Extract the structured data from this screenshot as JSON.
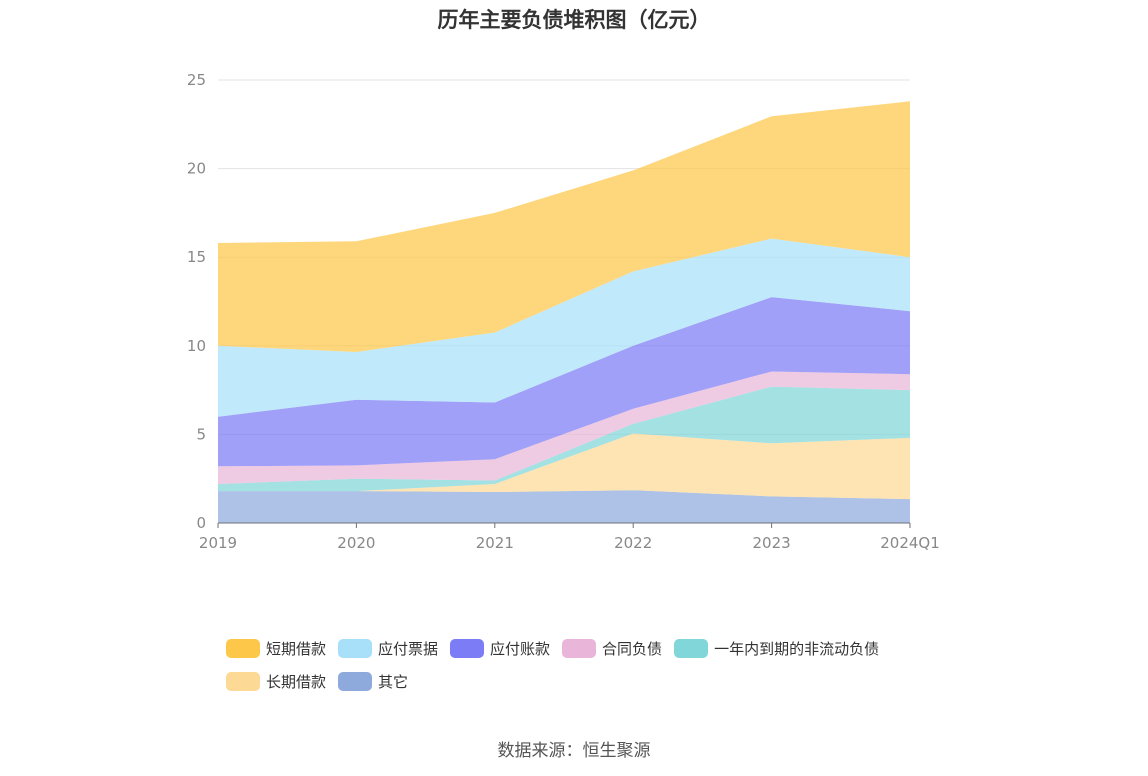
{
  "chart_data": {
    "type": "area",
    "stacked": true,
    "title": "历年主要负债堆积图（亿元）",
    "categories": [
      "2019",
      "2020",
      "2021",
      "2022",
      "2023",
      "2024Q1"
    ],
    "ylim": [
      0,
      25
    ],
    "yticks": [
      0,
      5,
      10,
      15,
      20,
      25
    ],
    "grid": true,
    "legend_position": "bottom",
    "series": [
      {
        "name": "其它",
        "color": "#8eaadc",
        "values": [
          1.8,
          1.8,
          1.75,
          1.85,
          1.5,
          1.35
        ]
      },
      {
        "name": "长期借款",
        "color": "#fdd996",
        "values": [
          0.0,
          0.0,
          0.45,
          3.2,
          3.0,
          3.45
        ]
      },
      {
        "name": "一年内到期的非流动负债",
        "color": "#80d6d8",
        "values": [
          0.4,
          0.7,
          0.2,
          0.55,
          3.2,
          2.7
        ]
      },
      {
        "name": "合同负债",
        "color": "#e9b5d8",
        "values": [
          1.0,
          0.75,
          1.2,
          0.85,
          0.85,
          0.9
        ]
      },
      {
        "name": "应付账款",
        "color": "#7b7cf6",
        "values": [
          2.8,
          3.7,
          3.2,
          3.55,
          4.2,
          3.55
        ]
      },
      {
        "name": "应付票据",
        "color": "#a8e0fa",
        "values": [
          4.0,
          2.7,
          3.95,
          4.2,
          3.3,
          3.05
        ]
      },
      {
        "name": "短期借款",
        "color": "#fdc84a",
        "values": [
          5.8,
          6.25,
          6.75,
          5.7,
          6.9,
          8.8
        ]
      }
    ]
  },
  "legend": {
    "items": [
      {
        "label": "短期借款",
        "color": "#fdc84a"
      },
      {
        "label": "应付票据",
        "color": "#a8e0fa"
      },
      {
        "label": "应付账款",
        "color": "#7b7cf6"
      },
      {
        "label": "合同负债",
        "color": "#e9b5d8"
      },
      {
        "label": "一年内到期的非流动负债",
        "color": "#80d6d8"
      },
      {
        "label": "长期借款",
        "color": "#fdd996"
      },
      {
        "label": "其它",
        "color": "#8eaadc"
      }
    ]
  },
  "source_text": "数据来源：恒生聚源"
}
